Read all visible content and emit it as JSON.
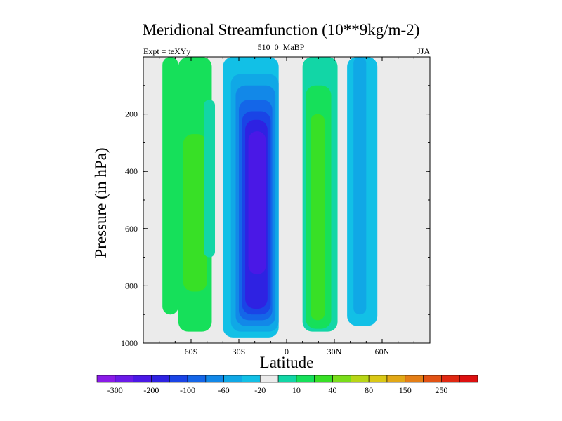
{
  "chart_data": {
    "type": "heatmap",
    "title": "Meridional Streamfunction (10**9kg/m-2)",
    "left_string": "Expt = teXYy",
    "center_string": "510_0_MaBP",
    "right_string": "JJA",
    "xlabel": "Latitude",
    "ylabel": "Pressure (in hPa)",
    "xlim": [
      -90,
      90
    ],
    "ylim": [
      1000,
      0
    ],
    "x_ticks": [
      {
        "value": -60,
        "label": "60S"
      },
      {
        "value": -30,
        "label": "30S"
      },
      {
        "value": 0,
        "label": "0"
      },
      {
        "value": 30,
        "label": "30N"
      },
      {
        "value": 60,
        "label": "60N"
      }
    ],
    "y_ticks": [
      {
        "value": 200,
        "label": "200"
      },
      {
        "value": 400,
        "label": "400"
      },
      {
        "value": 600,
        "label": "600"
      },
      {
        "value": 800,
        "label": "800"
      },
      {
        "value": 1000,
        "label": "1000"
      }
    ],
    "colorbar": {
      "levels_labels": [
        "-300",
        "-200",
        "-100",
        "-60",
        "-20",
        "10",
        "40",
        "80",
        "150",
        "250"
      ],
      "colors": [
        "#8A1BE8",
        "#6A1AE8",
        "#4A18E6",
        "#2E22E2",
        "#1A44E6",
        "#1466E8",
        "#1288E8",
        "#10A8E6",
        "#12C0E6",
        "#EBEBEB",
        "#12D6A6",
        "#16E05A",
        "#38E026",
        "#7ADD1A",
        "#B8D616",
        "#DAC816",
        "#E2A816",
        "#E47E16",
        "#E25214",
        "#E02812",
        "#DD1010"
      ]
    },
    "background_color": "#EBEBEB",
    "cells": [
      {
        "lat": [
          -78,
          -68
        ],
        "p": [
          0,
          900
        ],
        "color": "#16E05A"
      },
      {
        "lat": [
          -68,
          -47
        ],
        "p": [
          0,
          960
        ],
        "color": "#16E05A"
      },
      {
        "lat": [
          -65,
          -50
        ],
        "p": [
          270,
          820
        ],
        "color": "#38E026"
      },
      {
        "lat": [
          -52,
          -45
        ],
        "p": [
          150,
          700
        ],
        "color": "#12D6A6"
      },
      {
        "lat": [
          -40,
          -5
        ],
        "p": [
          0,
          980
        ],
        "color": "#12C0E6"
      },
      {
        "lat": [
          -35,
          -5
        ],
        "p": [
          60,
          960
        ],
        "color": "#10A8E6"
      },
      {
        "lat": [
          -32,
          -7
        ],
        "p": [
          100,
          940
        ],
        "color": "#1288E8"
      },
      {
        "lat": [
          -30,
          -9
        ],
        "p": [
          150,
          920
        ],
        "color": "#1466E8"
      },
      {
        "lat": [
          -28,
          -10
        ],
        "p": [
          190,
          900
        ],
        "color": "#1A44E6"
      },
      {
        "lat": [
          -26,
          -12
        ],
        "p": [
          220,
          880
        ],
        "color": "#2E22E2"
      },
      {
        "lat": [
          -24,
          -13
        ],
        "p": [
          260,
          760
        ],
        "color": "#4A18E6"
      },
      {
        "lat": [
          10,
          32
        ],
        "p": [
          0,
          960
        ],
        "color": "#12D6A6"
      },
      {
        "lat": [
          12,
          28
        ],
        "p": [
          100,
          950
        ],
        "color": "#16E05A"
      },
      {
        "lat": [
          15,
          24
        ],
        "p": [
          200,
          920
        ],
        "color": "#38E026"
      },
      {
        "lat": [
          38,
          57
        ],
        "p": [
          0,
          940
        ],
        "color": "#12C0E6"
      },
      {
        "lat": [
          42,
          50
        ],
        "p": [
          0,
          900
        ],
        "color": "#10A8E6"
      }
    ]
  }
}
